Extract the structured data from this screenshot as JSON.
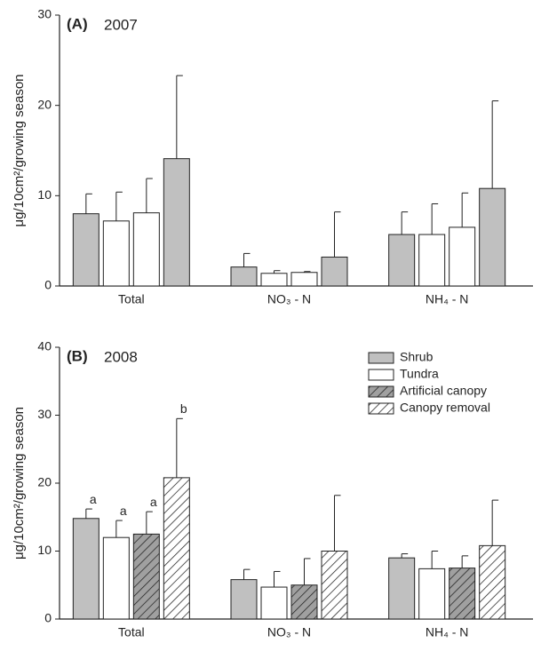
{
  "chart_data": [
    {
      "type": "bar",
      "panel": "(A)",
      "title": "2007",
      "ylabel": "μg/10cm²/growing season",
      "categories": [
        "Total",
        "NO₃ - N",
        "NH₄ - N"
      ],
      "ylim": [
        0,
        30
      ],
      "yticks": [
        0,
        10,
        20,
        30
      ],
      "series": [
        {
          "color": "#c0c0c0",
          "hatch": false,
          "values": [
            8.0,
            2.1,
            5.7
          ],
          "errors": [
            2.2,
            1.5,
            2.5
          ]
        },
        {
          "color": "#ffffff",
          "hatch": false,
          "values": [
            7.2,
            1.4,
            5.7
          ],
          "errors": [
            3.2,
            0.3,
            3.4
          ]
        },
        {
          "color": "#ffffff",
          "hatch": false,
          "values": [
            8.1,
            1.5,
            6.5
          ],
          "errors": [
            3.8,
            0.1,
            3.8
          ]
        },
        {
          "color": "#c0c0c0",
          "hatch": false,
          "values": [
            14.1,
            3.2,
            10.8
          ],
          "errors": [
            9.2,
            5.0,
            9.7
          ]
        }
      ]
    },
    {
      "type": "bar",
      "panel": "(B)",
      "title": "2008",
      "ylabel": "μg/10cm²/growing season",
      "categories": [
        "Total",
        "NO₃ - N",
        "NH₄ - N"
      ],
      "ylim": [
        0,
        40
      ],
      "yticks": [
        0,
        10,
        20,
        30,
        40
      ],
      "legend": "upper right",
      "series": [
        {
          "name": "Shrub",
          "color": "#c0c0c0",
          "hatch": false,
          "values": [
            14.8,
            5.8,
            9.0
          ],
          "errors": [
            1.4,
            1.5,
            0.6
          ],
          "labels": [
            "a",
            null,
            null
          ]
        },
        {
          "name": "Tundra",
          "color": "#ffffff",
          "hatch": false,
          "values": [
            12.0,
            4.7,
            7.4
          ],
          "errors": [
            2.5,
            2.3,
            2.6
          ],
          "labels": [
            "a",
            null,
            null
          ]
        },
        {
          "name": "Artificial canopy",
          "color": "#a0a0a0",
          "hatch": true,
          "values": [
            12.5,
            5.0,
            7.5
          ],
          "errors": [
            3.3,
            3.9,
            1.8
          ],
          "labels": [
            "a",
            null,
            null
          ]
        },
        {
          "name": "Canopy removal",
          "color": "#ffffff",
          "hatch": true,
          "values": [
            20.8,
            10.0,
            10.8
          ],
          "errors": [
            8.7,
            8.2,
            6.7
          ],
          "labels": [
            "b",
            null,
            null
          ]
        }
      ]
    }
  ]
}
